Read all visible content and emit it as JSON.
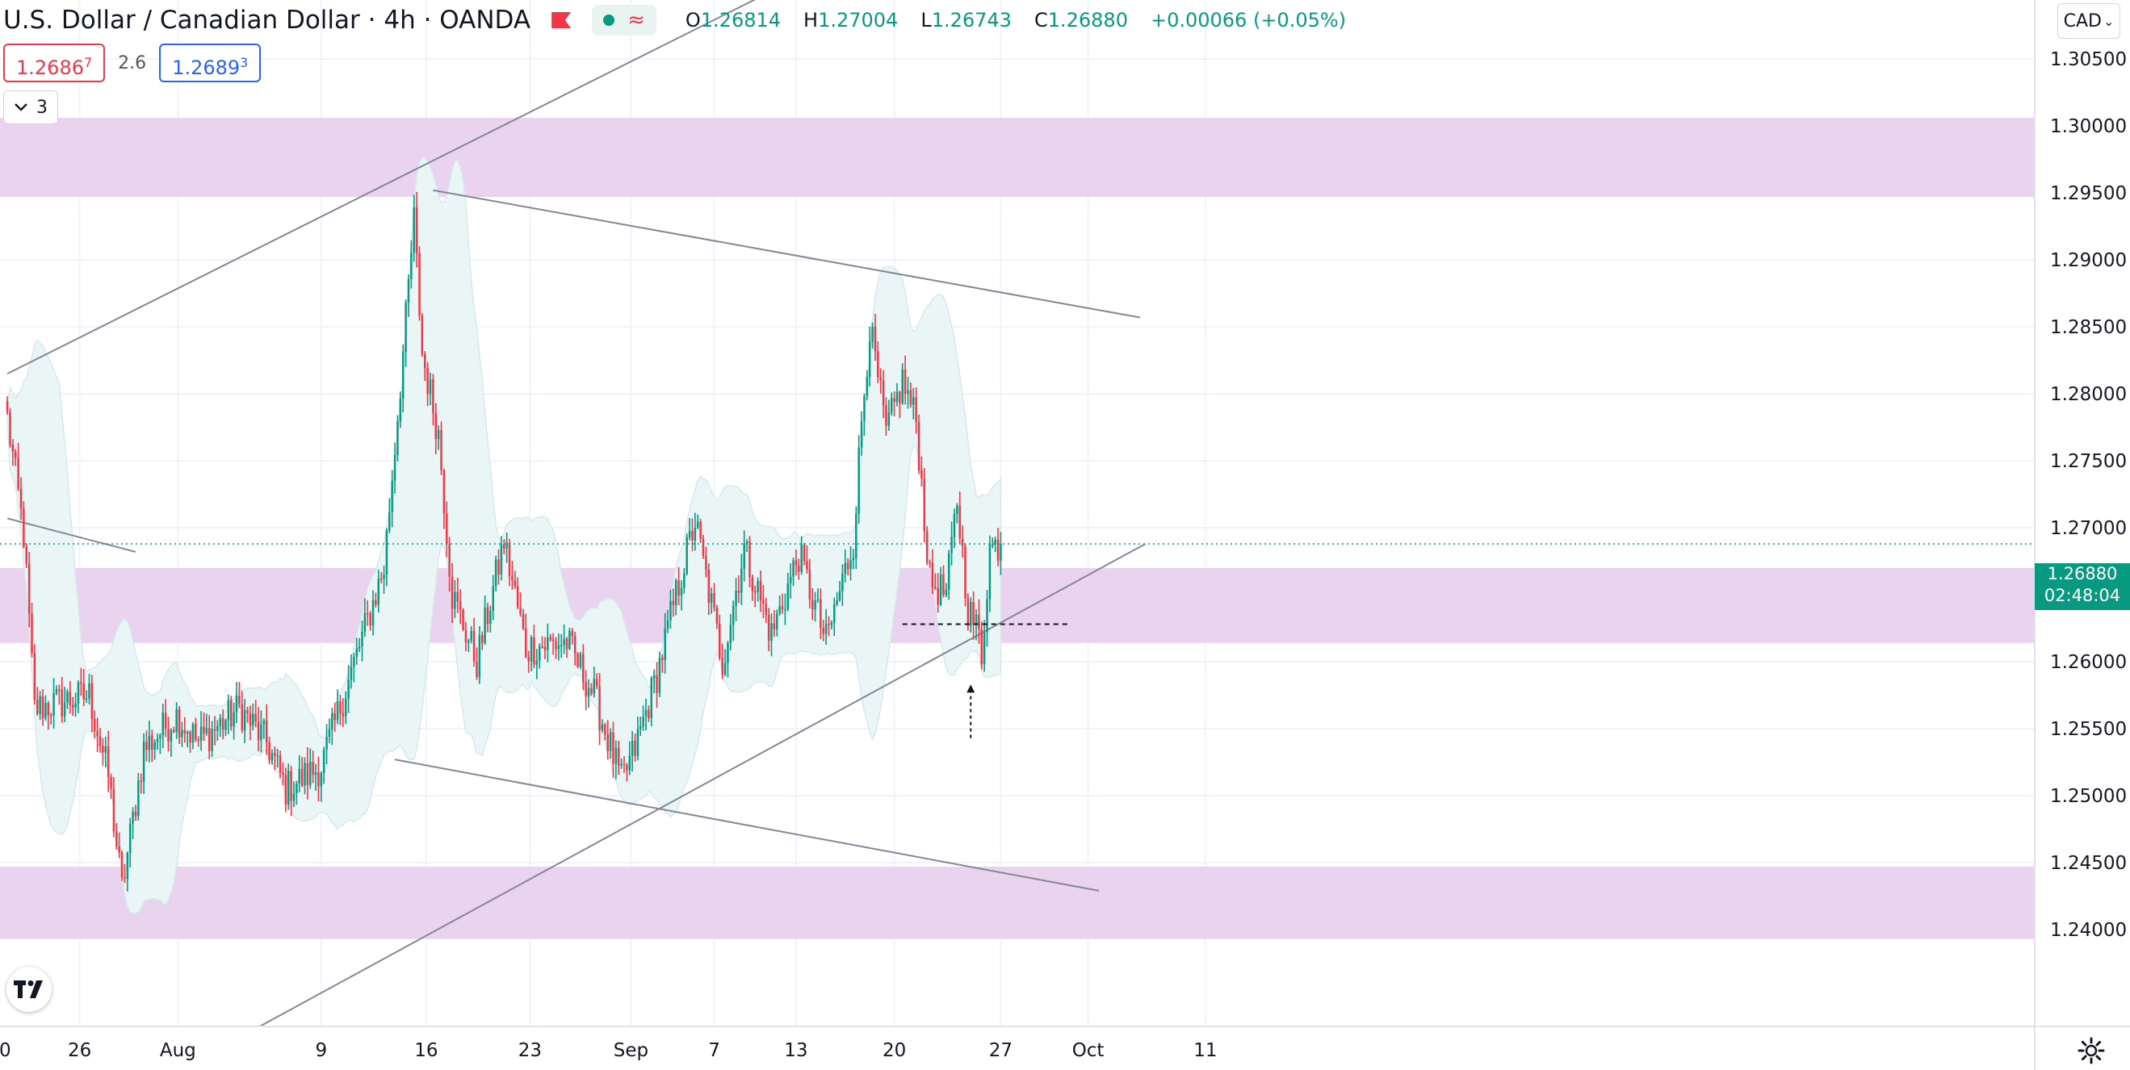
{
  "header": {
    "title": "U.S. Dollar / Canadian Dollar",
    "sep": "·",
    "interval": "4h",
    "exchange": "OANDA",
    "pill_symbol": "≈",
    "ohlc": {
      "o_label": "O",
      "o": "1.26814",
      "h_label": "H",
      "h": "1.27004",
      "l_label": "L",
      "l": "1.26743",
      "c_label": "C",
      "c": "1.26880",
      "change": "+0.00066 (+0.05%)"
    }
  },
  "trade": {
    "sell_main": "1.2686",
    "sell_sup": "7",
    "spread": "2.6",
    "buy_main": "1.2689",
    "buy_sup": "3"
  },
  "indicators": {
    "count": "3"
  },
  "currency": {
    "label": "CAD",
    "chevron": "⌄"
  },
  "current_price": {
    "value": "1.26880",
    "countdown": "02:48:04"
  },
  "colors": {
    "up": "#089981",
    "down": "#f23645",
    "zone": "#e9d3ee",
    "band": "#eaf5f6",
    "line": "#838796",
    "grid": "#f0f3fa"
  },
  "chart_data": {
    "type": "candlestick",
    "symbol": "USDCAD",
    "timeframe": "4h",
    "y_ticks": [
      "1.30500",
      "1.30000",
      "1.29500",
      "1.29000",
      "1.28500",
      "1.28000",
      "1.27500",
      "1.27000",
      "1.26500",
      "1.26000",
      "1.25500",
      "1.25000",
      "1.24500",
      "1.24000"
    ],
    "x_ticks": [
      "20",
      "26",
      "Aug",
      "9",
      "16",
      "23",
      "Sep",
      "7",
      "13",
      "20",
      "27",
      "Oct",
      "11"
    ],
    "ylim": [
      1.2373,
      1.3094
    ],
    "zones": [
      [
        1.2947,
        1.3006
      ],
      [
        1.2614,
        1.267
      ],
      [
        1.2393,
        1.2447
      ]
    ],
    "last_price": 1.2688,
    "keypoints": [
      {
        "t": 0,
        "p": 1.2782
      },
      {
        "t": 6,
        "p": 1.2695
      },
      {
        "t": 10,
        "p": 1.2565
      },
      {
        "t": 20,
        "p": 1.257
      },
      {
        "t": 30,
        "p": 1.2575
      },
      {
        "t": 37,
        "p": 1.2515
      },
      {
        "t": 42,
        "p": 1.243
      },
      {
        "t": 50,
        "p": 1.2535
      },
      {
        "t": 62,
        "p": 1.256
      },
      {
        "t": 70,
        "p": 1.254
      },
      {
        "t": 85,
        "p": 1.2565
      },
      {
        "t": 95,
        "p": 1.254
      },
      {
        "t": 102,
        "p": 1.2505
      },
      {
        "t": 115,
        "p": 1.2522
      },
      {
        "t": 128,
        "p": 1.2605
      },
      {
        "t": 138,
        "p": 1.267
      },
      {
        "t": 145,
        "p": 1.283
      },
      {
        "t": 149,
        "p": 1.293
      },
      {
        "t": 152,
        "p": 1.283
      },
      {
        "t": 158,
        "p": 1.277
      },
      {
        "t": 163,
        "p": 1.265
      },
      {
        "t": 172,
        "p": 1.26
      },
      {
        "t": 182,
        "p": 1.269
      },
      {
        "t": 190,
        "p": 1.261
      },
      {
        "t": 205,
        "p": 1.2615
      },
      {
        "t": 215,
        "p": 1.2575
      },
      {
        "t": 225,
        "p": 1.251
      },
      {
        "t": 230,
        "p": 1.2535
      },
      {
        "t": 238,
        "p": 1.259
      },
      {
        "t": 245,
        "p": 1.265
      },
      {
        "t": 252,
        "p": 1.2705
      },
      {
        "t": 262,
        "p": 1.26
      },
      {
        "t": 270,
        "p": 1.2685
      },
      {
        "t": 280,
        "p": 1.262
      },
      {
        "t": 290,
        "p": 1.268
      },
      {
        "t": 300,
        "p": 1.2615
      },
      {
        "t": 310,
        "p": 1.269
      },
      {
        "t": 313,
        "p": 1.278
      },
      {
        "t": 316,
        "p": 1.285
      },
      {
        "t": 322,
        "p": 1.277
      },
      {
        "t": 328,
        "p": 1.281
      },
      {
        "t": 333,
        "p": 1.278
      },
      {
        "t": 338,
        "p": 1.266
      },
      {
        "t": 344,
        "p": 1.265
      },
      {
        "t": 348,
        "p": 1.272
      },
      {
        "t": 352,
        "p": 1.264
      },
      {
        "t": 356,
        "p": 1.262
      },
      {
        "t": 357,
        "p": 1.2605
      },
      {
        "t": 360,
        "p": 1.2685
      },
      {
        "t": 364,
        "p": 1.2688
      }
    ],
    "trendlines": [
      {
        "t1": 0,
        "p1": 1.2815,
        "t2": 303,
        "p2": 1.3124
      },
      {
        "t1": 156,
        "p1": 1.2952,
        "t2": 415,
        "p2": 1.2857
      },
      {
        "t1": 0,
        "p1": 1.2707,
        "t2": 47,
        "p2": 1.2682
      },
      {
        "t1": 142,
        "p1": 1.2527,
        "t2": 400,
        "p2": 1.2429
      },
      {
        "t1": 90,
        "p1": 1.2325,
        "t2": 417,
        "p2": 1.2688
      }
    ],
    "level_line": {
      "t1": 328,
      "t2": 389,
      "p": 1.2628
    },
    "arrow": {
      "t": 353,
      "from": 1.2543,
      "to": 1.2583
    },
    "current_line": 1.2688
  }
}
